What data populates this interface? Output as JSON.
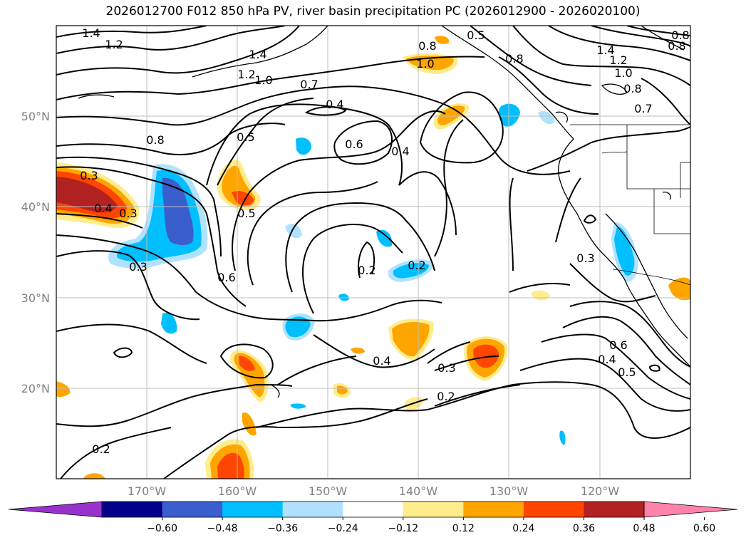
{
  "title": "2026012700 F012 850 hPa PV, river basin precipitation PC (2026012900 - 2026020100)",
  "lat_labels": [
    "50°N",
    "40°N",
    "30°N",
    "20°N"
  ],
  "lon_labels": [
    "170°W",
    "160°W",
    "150°W",
    "140°W",
    "130°W",
    "120°W"
  ],
  "colorbar": {
    "ticks": [
      "−0.60",
      "−0.48",
      "−0.36",
      "−0.24",
      "−0.12",
      "0.12",
      "0.24",
      "0.36",
      "0.48",
      "0.60"
    ],
    "colors": [
      "#9932cc",
      "#00008b",
      "#3a5fcd",
      "#00bfff",
      "#b0e2ff",
      "#ffffff",
      "#ffec8b",
      "#ffa500",
      "#ff4500",
      "#b22222",
      "#ff82ab"
    ]
  },
  "contour_labels": [
    "1.4",
    "1.2",
    "1.4",
    "1.2",
    "1.0",
    "0.7",
    "0.8",
    "0.5",
    "1.0",
    "0.4",
    "0.8",
    "0.5",
    "0.6",
    "0.4",
    "0.8",
    "1.4",
    "1.2",
    "1.0",
    "0.8",
    "0.7",
    "0.8",
    "0.3",
    "0.4",
    "0.3",
    "0.5",
    "0.6",
    "0.2",
    "0.2",
    "0.3",
    "0.4",
    "0.3",
    "0.2",
    "0.2",
    "0.3",
    "0.4",
    "0.5",
    "0.6",
    "0.8"
  ],
  "colors": {
    "shade_pos1": "#ffec8b",
    "shade_pos2": "#ffa500",
    "shade_pos3": "#ff4500",
    "shade_pos4": "#b22222",
    "shade_neg1": "#b0e2ff",
    "shade_neg2": "#00bfff",
    "shade_neg3": "#3a5fcd"
  }
}
